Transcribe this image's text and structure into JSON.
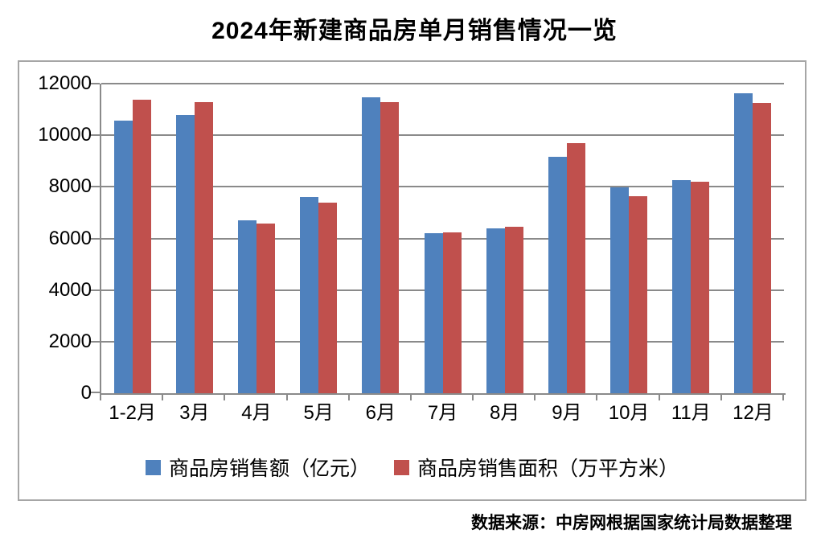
{
  "chart_data": {
    "type": "bar",
    "title": "2024年新建商品房单月销售情况一览",
    "categories": [
      "1-2月",
      "3月",
      "4月",
      "5月",
      "6月",
      "7月",
      "8月",
      "9月",
      "10月",
      "11月",
      "12月"
    ],
    "series": [
      {
        "name": "商品房销售额（亿元）",
        "color": "#4F81BD",
        "values": [
          10566,
          10789,
          6712,
          7598,
          11468,
          6197,
          6393,
          9157,
          7975,
          8270,
          11625
        ]
      },
      {
        "name": "商品房销售面积（万平方米）",
        "color": "#C0504D",
        "values": [
          11369,
          11299,
          6584,
          7390,
          11274,
          6233,
          6453,
          9682,
          7646,
          8188,
          11267
        ]
      }
    ],
    "ylim": [
      0,
      12000
    ],
    "yticks": [
      0,
      2000,
      4000,
      6000,
      8000,
      10000,
      12000
    ],
    "grid": "horizontal",
    "legend_position": "bottom",
    "source_note": "数据来源：中房网根据国家统计局数据整理"
  },
  "colors": {
    "grid": "#8A8A8A",
    "axis": "#8A8A8A",
    "frame_border": "#A6A6A6",
    "text": "#000000"
  }
}
